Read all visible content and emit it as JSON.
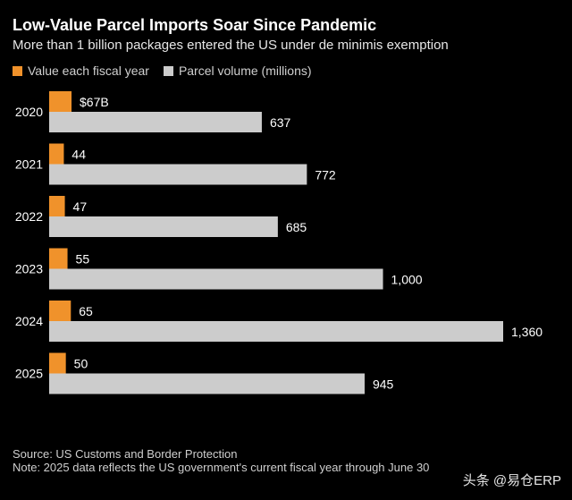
{
  "title": "Low-Value Parcel Imports Soar Since Pandemic",
  "subtitle": "More than 1 billion packages entered the US under de minimis exemption",
  "legend": [
    {
      "label": "Value each fiscal year",
      "color": "#f0922b"
    },
    {
      "label": "Parcel volume (millions)",
      "color": "#cccccc"
    }
  ],
  "chart_data": {
    "type": "bar",
    "orientation": "horizontal",
    "categories": [
      "2020",
      "2021",
      "2022",
      "2023",
      "2024",
      "2025"
    ],
    "series": [
      {
        "name": "Value each fiscal year",
        "values": [
          67,
          44,
          47,
          55,
          65,
          50
        ],
        "labels": [
          "$67B",
          "44",
          "47",
          "55",
          "65",
          "50"
        ],
        "color": "#f0922b"
      },
      {
        "name": "Parcel volume (millions)",
        "values": [
          637,
          772,
          685,
          1000,
          1360,
          945
        ],
        "labels": [
          "637",
          "772",
          "685",
          "1,000",
          "1,360",
          "945"
        ],
        "color": "#cccccc"
      }
    ],
    "legend_position": "top-left",
    "grid": false
  },
  "footer": {
    "source": "Source: US Customs and Border Protection",
    "note": "Note: 2025 data reflects the US government's current fiscal year through June 30"
  },
  "watermark": "头条 @易仓ERP"
}
